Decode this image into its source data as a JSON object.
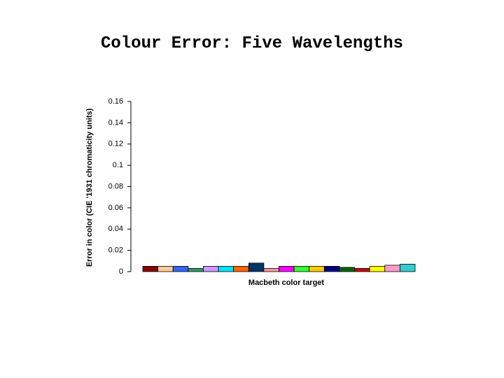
{
  "chart_data": {
    "type": "bar",
    "title": "Colour Error: Five Wavelengths",
    "x_label": "Macbeth color target",
    "y_label": "Error in color (CIE '1931 chromaticity units)",
    "categories": [
      null,
      null,
      null,
      null,
      null,
      null,
      null,
      null,
      null,
      null,
      null,
      null,
      null,
      null,
      null,
      null,
      null,
      null
    ],
    "values": [
      0.005,
      0.005,
      0.005,
      0.003,
      0.005,
      0.005,
      0.005,
      0.008,
      0.003,
      0.005,
      0.005,
      0.005,
      0.005,
      0.004,
      0.003,
      0.005,
      0.006,
      0.007
    ],
    "colors": [
      "#8b0000",
      "#ffcc99",
      "#3366ff",
      "#339966",
      "#cc99ff",
      "#00e5ff",
      "#ff6600",
      "#003366",
      "#ff9999",
      "#ff00ff",
      "#33ff33",
      "#ffcc00",
      "#000080",
      "#006600",
      "#cc0000",
      "#ffff00",
      "#ff99cc",
      "#33cccc"
    ],
    "ylim": [
      0,
      0.16
    ],
    "yticks": [
      0,
      0.02,
      0.04,
      0.06,
      0.08,
      0.1,
      0.12,
      0.14,
      0.16
    ],
    "grid": false
  }
}
